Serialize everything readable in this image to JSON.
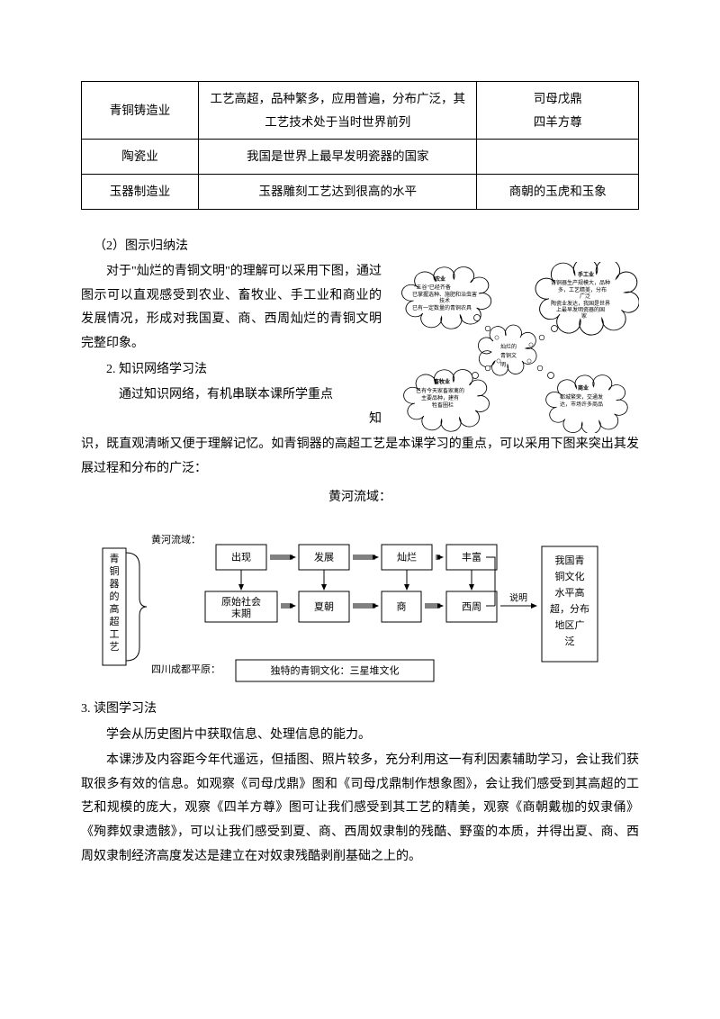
{
  "table": {
    "rows": [
      {
        "c1": "青铜铸造业",
        "c2": "工艺高超，品种繁多，应用普遍，分布广泛，其工艺技术处于当时世界前列",
        "c3": "司母戊鼎\n四羊方尊"
      },
      {
        "c1": "陶瓷业",
        "c2": "我国是世界上最早发明瓷器的国家",
        "c3": ""
      },
      {
        "c1": "玉器制造业",
        "c2": "玉器雕刻工艺达到很高的水平",
        "c3": "商朝的玉虎和玉象"
      }
    ]
  },
  "p_heading_2": "（2）图示归纳法",
  "p_body_2a": "对于\"灿烂的青铜文明\"的理解可以采用下图，通过图示可以直观感受到农业、畜牧业、手工业和商业的发展情况，形成对我国夏、商、西周灿烂的青铜文明完整印象。",
  "p_subhead_2": "2. 知识网络学习法",
  "p_body_2b_a": "通过知识网络，有机串联本课所学重点",
  "p_body_2b_b": "知",
  "p_body_2b_c": "识，既直观清晰又便于理解记忆。如青铜器的高超工艺是本课学习的重点，可以采用下图来突出其发展过程和分布的广泛：",
  "mindmap": {
    "center": "灿烂的\n青铜文\n明",
    "agriculture": {
      "title": "农业",
      "l1": "\"五谷\"已经齐备",
      "l2": "已掌握选种、施肥和治虫害",
      "l3": "技术",
      "l4": "已有一定数量的青铜农具"
    },
    "handicraft": {
      "title": "手工业",
      "l1": "青铜器生产规模大，品种",
      "l2": "多，工艺精美，分布",
      "l3": "广泛",
      "l4": "陶瓷业发达，我国是世界",
      "l5": "上最早发明瓷器的国",
      "l6": "家"
    },
    "animal": {
      "title": "畜牧业",
      "l1": "已有今天家畜家禽的",
      "l2": "主要品种，建有",
      "l3": "牲畜圈栏"
    },
    "commerce": {
      "title": "商业",
      "l1": "都城繁荣，交通发",
      "l2": "达，市场许多商品"
    }
  },
  "flow_title": "黄河流域：",
  "flow": {
    "region1": "黄河流域：",
    "region2": "四川成都平原：",
    "left_vert": "青铜器的高超工艺",
    "r1": [
      "出现",
      "发展",
      "灿烂",
      "丰富"
    ],
    "r2": [
      "原始社会末期",
      "夏朝",
      "商",
      "西周"
    ],
    "explain": "说明",
    "right": "我国青\n铜文化\n水平高\n超，分布\n地区广\n泛",
    "r3": "独特的青铜文化：三星堆文化"
  },
  "p_heading_3": "3. 读图学习法",
  "p_body_3a": "学会从历史图片中获取信息、处理信息的能力。",
  "p_body_3b": "本课涉及内容距今年代遥远，但插图、照片较多，充分利用这一有利因素辅助学习，会让我们获取很多有效的信息。如观察《司母戊鼎》图和《司母戊鼎制作想象图》，会让我们感受到其高超的工艺和规模的庞大，观察《四羊方尊》图可让我们感受到其工艺的精美，观察《商朝戴枷的奴隶俑》《殉葬奴隶遗骸》，可以让我们感受到夏、商、西周奴隶制的残酷、野蛮的本质，并得出夏、商、西周奴隶制经济高度发达是建立在对奴隶残酷剥削基础之上的。"
}
